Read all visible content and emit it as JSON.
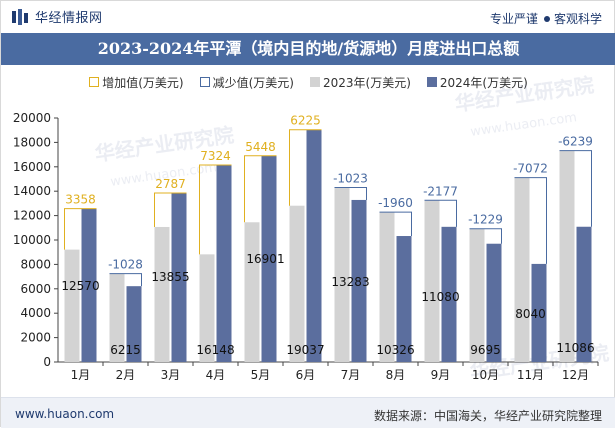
{
  "header": {
    "brand": "华经情报网",
    "tagline_left": "专业严谨",
    "tagline_right": "客观科学"
  },
  "title": "2023-2024年平潭（境内目的地/货源地）月度进出口总额",
  "legend": {
    "increase": "增加值(万美元)",
    "decrease": "减少值(万美元)",
    "y2023": "2023年(万美元)",
    "y2024": "2024年(万美元)"
  },
  "colors": {
    "increase": "#e0b020",
    "decrease": "#4a6ba1",
    "y2023": "#d3d3d3",
    "y2024": "#5b6e9e",
    "title_bg": "#4a6ba1"
  },
  "footer": {
    "url": "www.huaon.com",
    "source": "数据来源：中国海关，华经产业研究院整理"
  },
  "watermarks": [
    "华经产业研究院",
    "www.huaon.com"
  ],
  "chart_data": {
    "type": "bar",
    "categories": [
      "1月",
      "2月",
      "3月",
      "4月",
      "5月",
      "6月",
      "7月",
      "8月",
      "9月",
      "10月",
      "11月",
      "12月"
    ],
    "series": [
      {
        "name": "2023年(万美元)",
        "values": [
          9212,
          7243,
          11068,
          8824,
          11453,
          12812,
          14306,
          12286,
          13257,
          10924,
          15112,
          17325
        ]
      },
      {
        "name": "2024年(万美元)",
        "values": [
          12570,
          6215,
          13855,
          16148,
          16901,
          19037,
          13283,
          10326,
          11080,
          9695,
          8040,
          11086
        ]
      }
    ],
    "change": {
      "labels": [
        "3358",
        "-1028",
        "2787",
        "7324",
        "5448",
        "6225",
        "-1023",
        "-1960",
        "-2177",
        "-1229",
        "-7072",
        "-6239"
      ],
      "values": [
        3358,
        -1028,
        2787,
        7324,
        5448,
        6225,
        -1023,
        -1960,
        -2177,
        -1229,
        -7072,
        -6239
      ]
    },
    "value_labels_2024": [
      "12570",
      "6215",
      "13855",
      "16148",
      "16901",
      "19037",
      "13283",
      "10326",
      "11080",
      "9695",
      "8040",
      "11086"
    ],
    "y_ticks": [
      "0",
      "2000",
      "4000",
      "6000",
      "8000",
      "10000",
      "12000",
      "14000",
      "16000",
      "18000",
      "20000"
    ],
    "ylim": [
      0,
      20000
    ],
    "title": "2023-2024年平潭（境内目的地/货源地）月度进出口总额",
    "xlabel": "",
    "ylabel": ""
  }
}
